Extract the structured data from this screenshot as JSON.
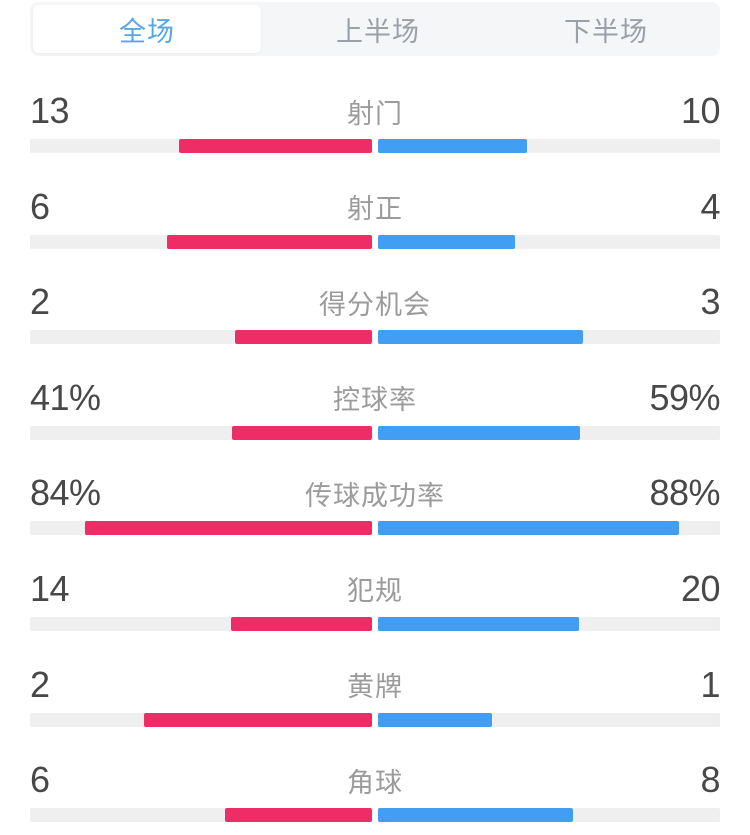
{
  "tabs": {
    "items": [
      {
        "label": "全场"
      },
      {
        "label": "上半场"
      },
      {
        "label": "下半场"
      }
    ],
    "active_index": 0
  },
  "stats": {
    "rows": [
      {
        "label": "射门",
        "left": "13",
        "right": "10"
      },
      {
        "label": "射正",
        "left": "6",
        "right": "4"
      },
      {
        "label": "得分机会",
        "left": "2",
        "right": "3"
      },
      {
        "label": "控球率",
        "left": "41%",
        "right": "59%"
      },
      {
        "label": "传球成功率",
        "left": "84%",
        "right": "88%"
      },
      {
        "label": "犯规",
        "left": "14",
        "right": "20"
      },
      {
        "label": "黄牌",
        "left": "2",
        "right": "1"
      },
      {
        "label": "角球",
        "left": "6",
        "right": "8"
      }
    ]
  },
  "colors": {
    "home": "#ee2d66",
    "away": "#419ef2",
    "track": "#efefef",
    "tab_bar_bg": "#f5f6f8",
    "tab_active_text": "#58a5ea",
    "tab_inactive_text": "#9aa0a8",
    "number_text": "#484848",
    "label_text": "#9b9b9b"
  },
  "chart_data": {
    "type": "bar",
    "orientation": "horizontal-diverging",
    "title": "",
    "tabs": [
      "全场",
      "上半场",
      "下半场"
    ],
    "active_tab": "全场",
    "categories": [
      "射门",
      "射正",
      "得分机会",
      "控球率",
      "传球成功率",
      "犯规",
      "黄牌",
      "角球"
    ],
    "series": [
      {
        "name": "left-team",
        "color": "#ee2d66",
        "values": [
          "13",
          "6",
          "2",
          "41%",
          "84%",
          "14",
          "2",
          "6"
        ]
      },
      {
        "name": "right-team",
        "color": "#419ef2",
        "values": [
          "10",
          "4",
          "3",
          "59%",
          "88%",
          "20",
          "1",
          "8"
        ]
      }
    ],
    "legend_position": "none",
    "grid": false,
    "bar_rule": "count rows: width = value/(left+right) of half-track; percent rows: width = value/100 of half-track"
  }
}
